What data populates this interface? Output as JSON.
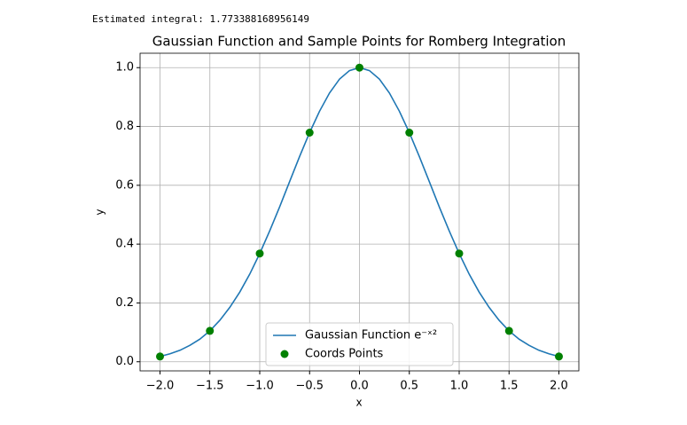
{
  "chart_data": {
    "type": "line_scatter",
    "annotation": "Estimated integral: 1.773388168956149",
    "title": "Gaussian Function and Sample Points for Romberg Integration",
    "x_label": "x",
    "y_label": "y",
    "xlim": [
      -2.2,
      2.2
    ],
    "ylim": [
      -0.031,
      1.049
    ],
    "xticks": [
      {
        "value": -2,
        "label": "−2.0"
      },
      {
        "value": -1.5,
        "label": "−1.5"
      },
      {
        "value": -1,
        "label": "−1.0"
      },
      {
        "value": -0.5,
        "label": "−0.5"
      },
      {
        "value": 0,
        "label": "0.0"
      },
      0.5,
      {
        "value": 1,
        "label": "1.0"
      },
      1.5,
      {
        "value": 2,
        "label": "2.0"
      }
    ],
    "yticks": [
      {
        "value": 0,
        "label": "0.0"
      },
      0.2,
      0.4,
      0.6,
      0.8,
      {
        "value": 1,
        "label": "1.0"
      }
    ],
    "grid": true,
    "legend": "lower center",
    "series": [
      {
        "name": "Gaussian Function e⁻ˣ²",
        "type": "line",
        "color": "#1f77b4",
        "x": [
          -2.0,
          -1.9,
          -1.8,
          -1.7,
          -1.6,
          -1.5,
          -1.4,
          -1.3,
          -1.2,
          -1.1,
          -1.0,
          -0.9,
          -0.8,
          -0.7,
          -0.6,
          -0.5,
          -0.4,
          -0.3,
          -0.2,
          -0.1,
          0.0,
          0.1,
          0.2,
          0.3,
          0.4,
          0.5,
          0.6,
          0.7,
          0.8,
          0.9,
          1.0,
          1.1,
          1.2,
          1.3,
          1.4,
          1.5,
          1.6,
          1.7,
          1.8,
          1.9,
          2.0
        ],
        "values": [
          0.018,
          0.027,
          0.039,
          0.056,
          0.077,
          0.105,
          0.141,
          0.185,
          0.237,
          0.298,
          0.368,
          0.445,
          0.527,
          0.613,
          0.698,
          0.779,
          0.852,
          0.914,
          0.961,
          0.99,
          1.0,
          0.99,
          0.961,
          0.914,
          0.852,
          0.779,
          0.698,
          0.613,
          0.527,
          0.445,
          0.368,
          0.298,
          0.237,
          0.185,
          0.141,
          0.105,
          0.077,
          0.056,
          0.039,
          0.027,
          0.018
        ]
      },
      {
        "name": "Coords Points",
        "type": "scatter",
        "color": "#008000",
        "x": [
          -2.0,
          -1.5,
          -1.0,
          -0.5,
          0.0,
          0.5,
          1.0,
          1.5,
          2.0
        ],
        "values": [
          0.018,
          0.105,
          0.368,
          0.779,
          1.0,
          0.779,
          0.368,
          0.105,
          0.018
        ]
      }
    ]
  }
}
